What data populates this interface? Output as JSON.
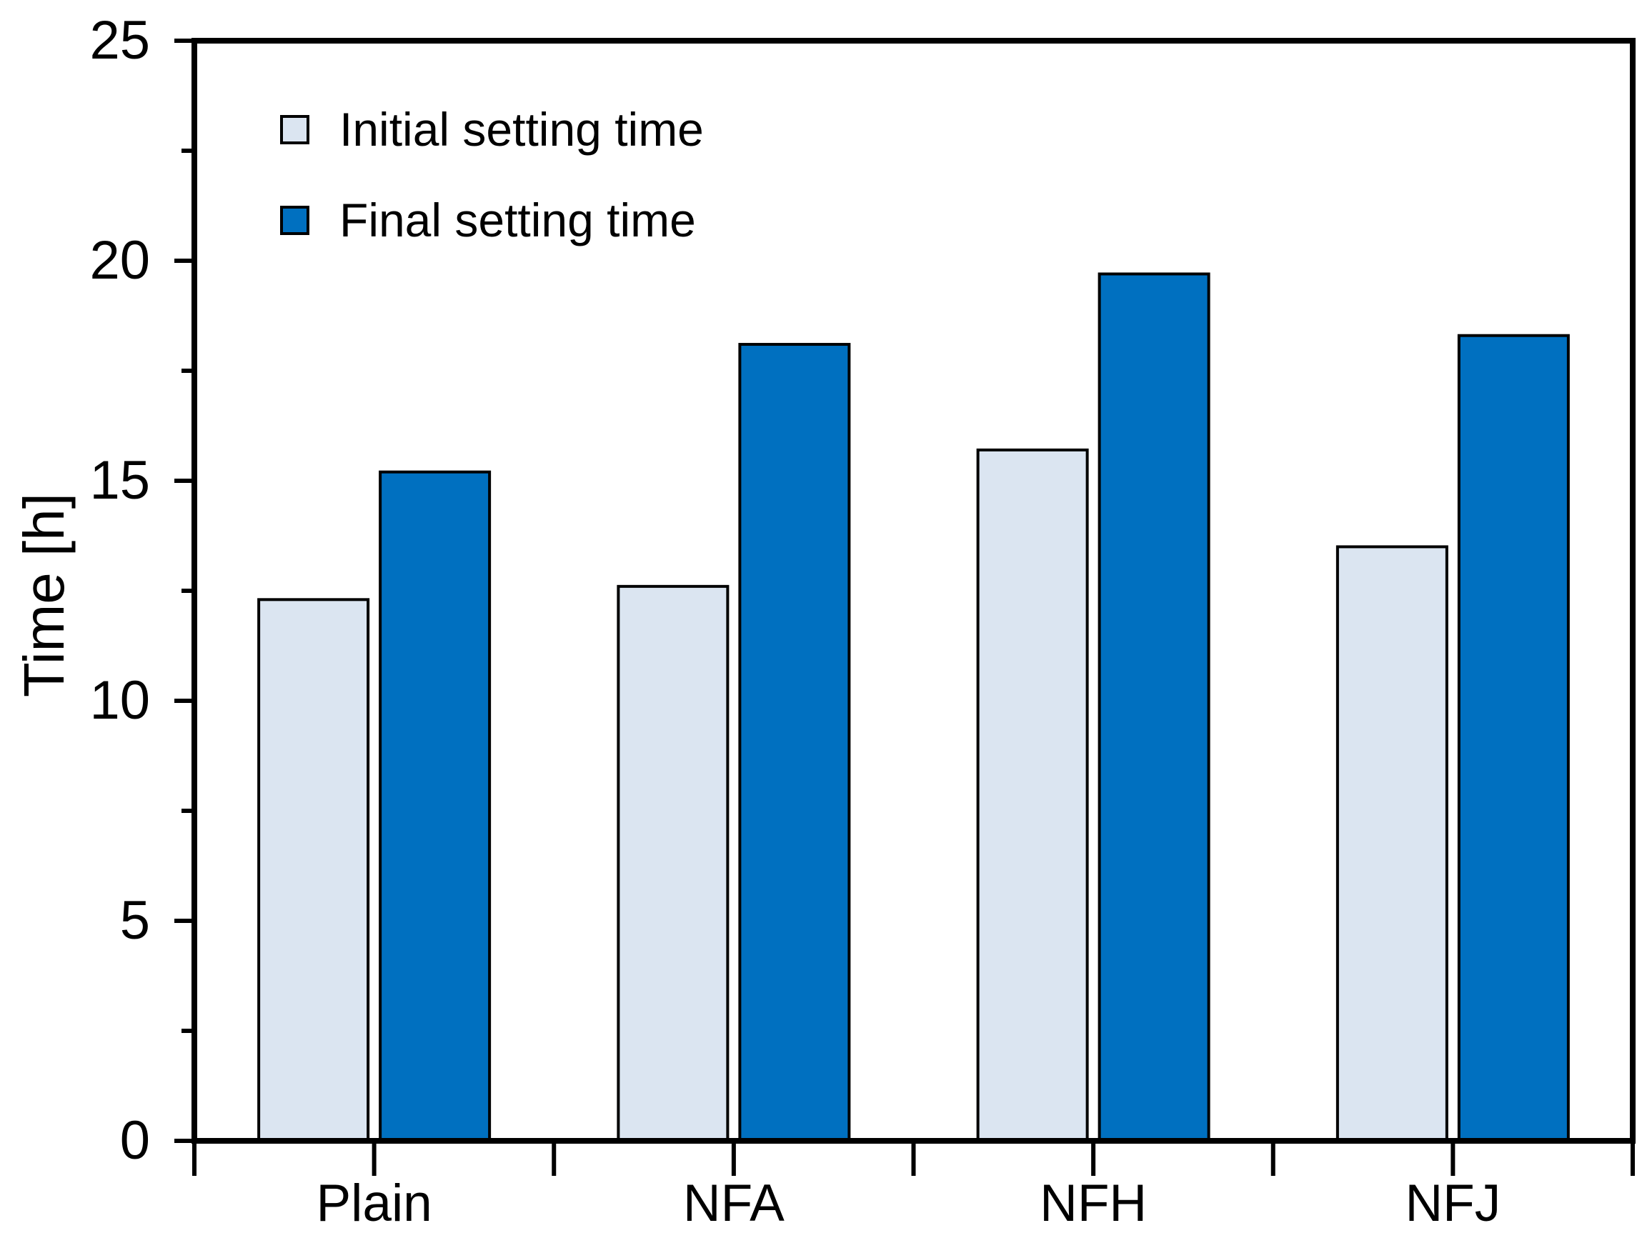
{
  "chart_data": {
    "type": "bar",
    "title": "",
    "categories": [
      "Plain",
      "NFA",
      "NFH",
      "NFJ"
    ],
    "series": [
      {
        "name": "Initial setting time",
        "color": "#dbe5f1",
        "values": [
          12.3,
          12.6,
          15.7,
          13.5
        ]
      },
      {
        "name": "Final setting time",
        "color": "#0070c0",
        "values": [
          15.2,
          18.1,
          19.7,
          18.3
        ]
      }
    ],
    "xlabel": "",
    "ylabel": "Time [h]",
    "ylim": [
      0,
      25
    ],
    "ytick_interval": 5,
    "yminor_interval": 2.5,
    "ytick_labels": [
      "0",
      "5",
      "10",
      "15",
      "20",
      "25"
    ],
    "legend_position": "top-left",
    "grid": false,
    "bar_edge_color": "#000000",
    "axis_color": "#000000",
    "background": "#ffffff"
  }
}
